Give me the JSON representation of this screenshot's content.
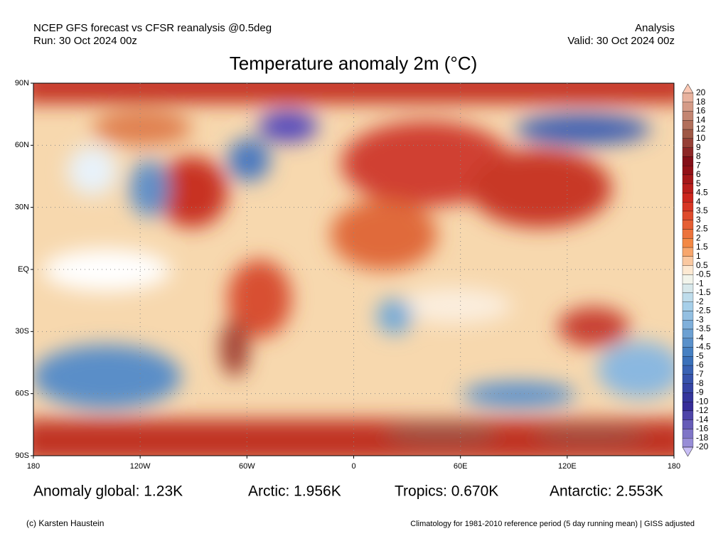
{
  "header": {
    "source": "NCEP GFS forecast vs CFSR reanalysis @0.5deg",
    "run": "Run: 30 Oct 2024 00z",
    "kind": "Analysis",
    "valid": "Valid: 30 Oct 2024 00z",
    "title": "Temperature anomaly 2m (°C)"
  },
  "map": {
    "lat_labels": [
      "90N",
      "60N",
      "30N",
      "EQ",
      "30S",
      "60S",
      "90S"
    ],
    "lon_labels": [
      "180",
      "120W",
      "60W",
      "0",
      "60E",
      "120E",
      "180"
    ]
  },
  "colorbar": {
    "levels": [
      20,
      18,
      16,
      14,
      12,
      10,
      9,
      8,
      7,
      6,
      5,
      4.5,
      4,
      3.5,
      3,
      2.5,
      2,
      1.5,
      1,
      0.5,
      -0.5,
      -1,
      -1.5,
      -2,
      -2.5,
      -3,
      -3.5,
      -4,
      -4.5,
      -5,
      -6,
      -7,
      -8,
      -9,
      -10,
      -12,
      -14,
      -16,
      -18,
      -20
    ]
  },
  "stats": [
    "Anomaly global: 1.23K",
    "Arctic: 1.956K",
    "Tropics: 0.670K",
    "Antarctic: 2.553K"
  ],
  "footer": {
    "credit": "(c) Karsten Haustein",
    "note": "Climatology for 1981-2010 reference period (5 day running mean) | GISS adjusted"
  }
}
